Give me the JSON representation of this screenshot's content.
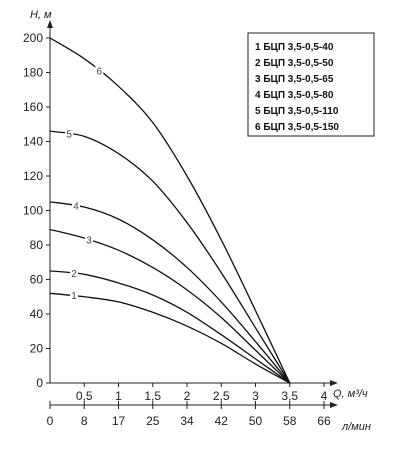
{
  "chart_data": {
    "type": "line",
    "ylabel": "H, м",
    "xlabel": "Q, м³/ч",
    "x2label": "л/мин",
    "ylim": [
      0,
      200
    ],
    "yticks": [
      0,
      20,
      40,
      60,
      80,
      100,
      120,
      140,
      160,
      180,
      200
    ],
    "xlim": [
      0,
      4
    ],
    "xticks": [
      0.5,
      1,
      1.5,
      2,
      2.5,
      3,
      3.5,
      4
    ],
    "xtick_labels": [
      "0,5",
      "1",
      "1,5",
      "2",
      "2,5",
      "3",
      "3,5",
      "4"
    ],
    "x2ticks": [
      0,
      8,
      17,
      25,
      34,
      42,
      50,
      58,
      66
    ],
    "x2tick_labels": [
      "0",
      "8",
      "17",
      "25",
      "34",
      "42",
      "50",
      "58",
      "66"
    ],
    "grid": false,
    "legend_position": "top-right",
    "series": [
      {
        "name": "1 БЦП 3,5-0,5-40",
        "label": "1",
        "x": [
          0,
          0.5,
          1.0,
          1.5,
          2.0,
          2.5,
          3.0,
          3.5
        ],
        "y": [
          52,
          50,
          47,
          41,
          33,
          23,
          11,
          0
        ]
      },
      {
        "name": "2 БЦП 3,5-0,5-50",
        "label": "2",
        "x": [
          0,
          0.5,
          1.0,
          1.5,
          2.0,
          2.5,
          3.0,
          3.5
        ],
        "y": [
          65,
          63,
          58,
          51,
          41,
          28,
          14,
          0
        ]
      },
      {
        "name": "3 БЦП 3,5-0,5-65",
        "label": "3",
        "x": [
          0,
          0.5,
          1.0,
          1.5,
          2.0,
          2.5,
          3.0,
          3.5
        ],
        "y": [
          89,
          84,
          77,
          67,
          54,
          38,
          19,
          0
        ]
      },
      {
        "name": "4 БЦП 3,5-0,5-80",
        "label": "4",
        "x": [
          0,
          0.5,
          1.0,
          1.5,
          2.0,
          2.5,
          3.0,
          3.5
        ],
        "y": [
          105,
          102,
          95,
          83,
          67,
          47,
          24,
          0
        ]
      },
      {
        "name": "5 БЦП 3,5-0,5-110",
        "label": "5",
        "x": [
          0,
          0.5,
          1.0,
          1.5,
          2.0,
          2.5,
          3.0,
          3.5
        ],
        "y": [
          146,
          143,
          133,
          117,
          93,
          64,
          32,
          0
        ]
      },
      {
        "name": "6 БЦП 3,5-0,5-150",
        "label": "6",
        "x": [
          0,
          0.5,
          1.0,
          1.5,
          2.0,
          2.5,
          3.0,
          3.5
        ],
        "y": [
          200,
          188,
          172,
          151,
          120,
          83,
          42,
          0
        ]
      }
    ]
  }
}
